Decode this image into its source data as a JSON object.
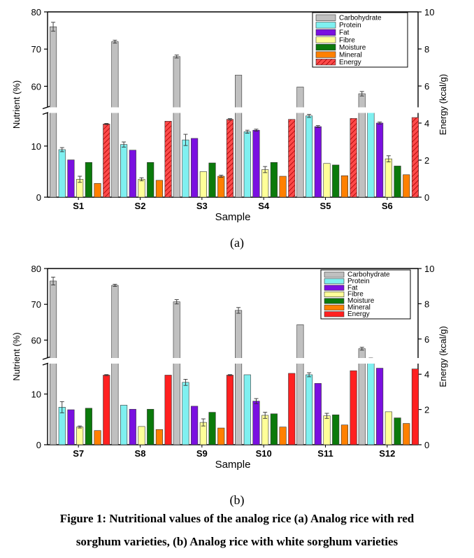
{
  "colors": {
    "Carbohydrate": "#c0c0c0",
    "Protein": "#7ff0f0",
    "Fat": "#7a10e0",
    "Fibre": "#ffff99",
    "Moisture": "#0b7a0b",
    "Mineral": "#ff8000",
    "Energy": "#ff2020"
  },
  "panel_labels": [
    "(a)",
    "(b)"
  ],
  "caption": {
    "line1": "Figure 1: Nutritional values of the analog rice (a) Analog rice with red",
    "line2": "sorghum varieties, (b) Analog rice with white sorghum varieties"
  },
  "chart_data": [
    {
      "type": "bar",
      "title": "",
      "xlabel": "Sample",
      "ylabel": "Nutrient (%)",
      "y2label": "Energy (kcal/g)",
      "categories": [
        "S1",
        "S2",
        "S3",
        "S4",
        "S5",
        "S6"
      ],
      "y_axis_break": {
        "lower": [
          0,
          16
        ],
        "upper": [
          55,
          80
        ]
      },
      "y_ticks": [
        0,
        10,
        60,
        70,
        80
      ],
      "y2lim": [
        0,
        10
      ],
      "y2_ticks": [
        0,
        2,
        4,
        6,
        8,
        10
      ],
      "legend_position": "top-right",
      "energy_hatched": true,
      "series": [
        {
          "name": "Carbohydrate",
          "axis": "left",
          "values": [
            76.0,
            72.0,
            68.0,
            63.0,
            59.8,
            58.0
          ],
          "errors": [
            1.2,
            0.4,
            0.4,
            0,
            0,
            0.6
          ]
        },
        {
          "name": "Protein",
          "axis": "left",
          "values": [
            9.3,
            10.3,
            11.2,
            12.8,
            15.9,
            17.2
          ],
          "errors": [
            0.4,
            0.5,
            1.1,
            0.3,
            0.3,
            0.3
          ]
        },
        {
          "name": "Fat",
          "axis": "left",
          "values": [
            7.3,
            9.2,
            11.5,
            13.1,
            13.8,
            14.5
          ],
          "errors": [
            0,
            0,
            0,
            0.2,
            0.2,
            0.2
          ]
        },
        {
          "name": "Fibre",
          "axis": "left",
          "values": [
            3.5,
            3.5,
            5.0,
            5.4,
            6.6,
            7.5
          ],
          "errors": [
            0.6,
            0.3,
            0,
            0.6,
            0,
            0.6
          ]
        },
        {
          "name": "Moisture",
          "axis": "left",
          "values": [
            6.8,
            6.8,
            6.7,
            6.8,
            6.3,
            6.1
          ],
          "errors": [
            0,
            0,
            0,
            0,
            0,
            0
          ]
        },
        {
          "name": "Mineral",
          "axis": "left",
          "values": [
            2.7,
            3.3,
            4.1,
            4.1,
            4.2,
            4.4
          ],
          "errors": [
            0,
            0,
            0.2,
            0,
            0,
            0
          ]
        },
        {
          "name": "Energy",
          "axis": "right",
          "values": [
            3.95,
            4.1,
            4.2,
            4.2,
            4.25,
            4.3
          ],
          "errors": [
            0.03,
            0,
            0.04,
            0,
            0,
            0
          ]
        }
      ]
    },
    {
      "type": "bar",
      "title": "",
      "xlabel": "Sample",
      "ylabel": "Nutrient (%)",
      "y2label": "Energy (kcal/g)",
      "categories": [
        "S7",
        "S8",
        "S9",
        "S10",
        "S11",
        "S12"
      ],
      "y_axis_break": {
        "lower": [
          0,
          16
        ],
        "upper": [
          55,
          80
        ]
      },
      "y_ticks": [
        0,
        10,
        60,
        70,
        80
      ],
      "y2lim": [
        0,
        10
      ],
      "y2_ticks": [
        0,
        2,
        4,
        6,
        8,
        10
      ],
      "legend_position": "top-right",
      "energy_hatched": false,
      "series": [
        {
          "name": "Carbohydrate",
          "axis": "left",
          "values": [
            76.5,
            75.3,
            70.7,
            68.3,
            64.3,
            57.6
          ],
          "errors": [
            1.1,
            0.3,
            0.6,
            0.8,
            0,
            0.4
          ]
        },
        {
          "name": "Protein",
          "axis": "left",
          "values": [
            7.4,
            7.8,
            12.3,
            13.8,
            13.8,
            16.7
          ],
          "errors": [
            1.1,
            0,
            0.6,
            0,
            0.4,
            0.4
          ]
        },
        {
          "name": "Fat",
          "axis": "left",
          "values": [
            6.9,
            7.0,
            7.6,
            8.6,
            12.1,
            15.1
          ],
          "errors": [
            0,
            0,
            0,
            0.5,
            0,
            0
          ]
        },
        {
          "name": "Fibre",
          "axis": "left",
          "values": [
            3.5,
            3.6,
            4.4,
            5.8,
            5.7,
            6.5
          ],
          "errors": [
            0.2,
            0,
            0.7,
            0.6,
            0.5,
            0
          ]
        },
        {
          "name": "Moisture",
          "axis": "left",
          "values": [
            7.2,
            7.0,
            6.4,
            6.1,
            5.9,
            5.3
          ],
          "errors": [
            0,
            0,
            0,
            0,
            0,
            0
          ]
        },
        {
          "name": "Mineral",
          "axis": "left",
          "values": [
            2.8,
            3.0,
            3.3,
            3.5,
            3.9,
            4.2
          ],
          "errors": [
            0,
            0,
            0,
            0,
            0,
            0
          ]
        },
        {
          "name": "Energy",
          "axis": "right",
          "values": [
            3.95,
            3.95,
            3.95,
            4.05,
            4.2,
            4.3
          ],
          "errors": [
            0.03,
            0,
            0.03,
            0,
            0,
            0
          ]
        }
      ]
    }
  ]
}
